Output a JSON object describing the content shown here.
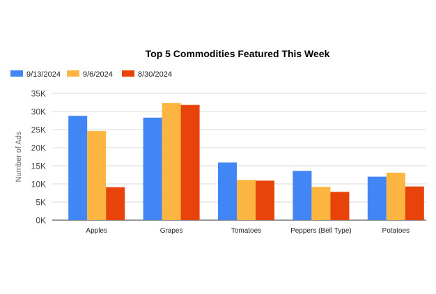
{
  "chart_data": {
    "type": "bar",
    "title": "Top 5 Commodities Featured This Week",
    "ylabel": "Number of Ads",
    "xlabel": "",
    "categories": [
      "Apples",
      "Grapes",
      "Tomatoes",
      "Peppers (Bell Type)",
      "Potatoes"
    ],
    "series": [
      {
        "name": "9/13/2024",
        "color": "#4285f4",
        "values": [
          28800,
          28300,
          15900,
          13600,
          12000
        ]
      },
      {
        "name": "9/6/2024",
        "color": "#fbb540",
        "values": [
          24600,
          32300,
          11100,
          9200,
          13100
        ]
      },
      {
        "name": "8/30/2024",
        "color": "#e8430b",
        "values": [
          9100,
          31800,
          10900,
          7800,
          9300
        ]
      }
    ],
    "ylim": [
      0,
      35000
    ],
    "yticks": [
      0,
      5000,
      10000,
      15000,
      20000,
      25000,
      30000,
      35000
    ],
    "ytick_labels": [
      "0K",
      "5K",
      "10K",
      "15K",
      "20K",
      "25K",
      "30K",
      "35K"
    ],
    "grid": true,
    "legend_position": "top-left"
  }
}
